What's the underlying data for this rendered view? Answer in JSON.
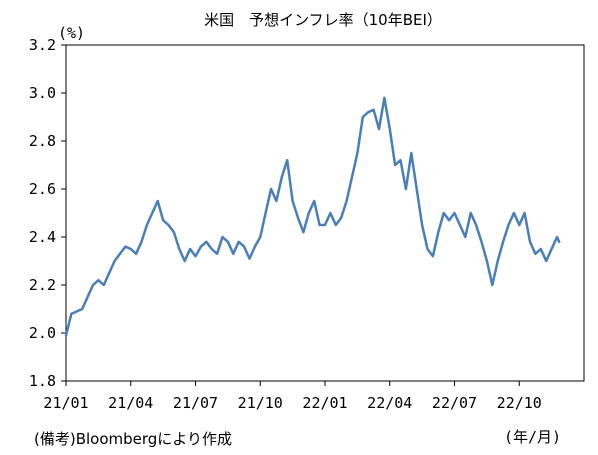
{
  "chart_data": {
    "type": "line",
    "title": "米国　予想インフレ率（10年BEI）",
    "yunit": "(%)",
    "xunit": "(年/月)",
    "source_note": "(備考)Bloombergにより作成",
    "ylim": [
      1.8,
      3.2
    ],
    "y_ticks": [
      "1.8",
      "2.0",
      "2.2",
      "2.4",
      "2.6",
      "2.8",
      "3.0",
      "3.2"
    ],
    "x_tick_labels": [
      "21/01",
      "21/04",
      "21/07",
      "21/10",
      "22/01",
      "22/04",
      "22/07",
      "22/10"
    ],
    "x_range_months": [
      "21/01",
      "22/12"
    ],
    "grid": false,
    "legend": "none",
    "line_color": "#4a7ebb",
    "series": [
      {
        "name": "",
        "points": [
          [
            0.0,
            1.99
          ],
          [
            0.25,
            2.08
          ],
          [
            0.5,
            2.09
          ],
          [
            0.75,
            2.1
          ],
          [
            1.0,
            2.15
          ],
          [
            1.25,
            2.2
          ],
          [
            1.5,
            2.22
          ],
          [
            1.75,
            2.2
          ],
          [
            2.0,
            2.25
          ],
          [
            2.25,
            2.3
          ],
          [
            2.5,
            2.33
          ],
          [
            2.75,
            2.36
          ],
          [
            3.0,
            2.35
          ],
          [
            3.25,
            2.33
          ],
          [
            3.5,
            2.38
          ],
          [
            3.75,
            2.45
          ],
          [
            4.0,
            2.5
          ],
          [
            4.25,
            2.55
          ],
          [
            4.5,
            2.47
          ],
          [
            4.75,
            2.45
          ],
          [
            5.0,
            2.42
          ],
          [
            5.25,
            2.35
          ],
          [
            5.5,
            2.3
          ],
          [
            5.75,
            2.35
          ],
          [
            6.0,
            2.32
          ],
          [
            6.25,
            2.36
          ],
          [
            6.5,
            2.38
          ],
          [
            6.75,
            2.35
          ],
          [
            7.0,
            2.33
          ],
          [
            7.25,
            2.4
          ],
          [
            7.5,
            2.38
          ],
          [
            7.75,
            2.33
          ],
          [
            8.0,
            2.38
          ],
          [
            8.25,
            2.36
          ],
          [
            8.5,
            2.31
          ],
          [
            8.75,
            2.36
          ],
          [
            9.0,
            2.4
          ],
          [
            9.25,
            2.5
          ],
          [
            9.5,
            2.6
          ],
          [
            9.75,
            2.55
          ],
          [
            10.0,
            2.65
          ],
          [
            10.25,
            2.72
          ],
          [
            10.5,
            2.55
          ],
          [
            10.75,
            2.48
          ],
          [
            11.0,
            2.42
          ],
          [
            11.25,
            2.5
          ],
          [
            11.5,
            2.55
          ],
          [
            11.75,
            2.45
          ],
          [
            12.0,
            2.45
          ],
          [
            12.25,
            2.5
          ],
          [
            12.5,
            2.45
          ],
          [
            12.75,
            2.48
          ],
          [
            13.0,
            2.55
          ],
          [
            13.25,
            2.65
          ],
          [
            13.5,
            2.75
          ],
          [
            13.75,
            2.9
          ],
          [
            14.0,
            2.92
          ],
          [
            14.25,
            2.93
          ],
          [
            14.5,
            2.85
          ],
          [
            14.75,
            2.98
          ],
          [
            15.0,
            2.85
          ],
          [
            15.25,
            2.7
          ],
          [
            15.5,
            2.72
          ],
          [
            15.75,
            2.6
          ],
          [
            16.0,
            2.75
          ],
          [
            16.25,
            2.6
          ],
          [
            16.5,
            2.45
          ],
          [
            16.75,
            2.35
          ],
          [
            17.0,
            2.32
          ],
          [
            17.25,
            2.42
          ],
          [
            17.5,
            2.5
          ],
          [
            17.75,
            2.47
          ],
          [
            18.0,
            2.5
          ],
          [
            18.25,
            2.45
          ],
          [
            18.5,
            2.4
          ],
          [
            18.75,
            2.5
          ],
          [
            19.0,
            2.45
          ],
          [
            19.25,
            2.38
          ],
          [
            19.5,
            2.3
          ],
          [
            19.75,
            2.2
          ],
          [
            20.0,
            2.3
          ],
          [
            20.25,
            2.38
          ],
          [
            20.5,
            2.45
          ],
          [
            20.75,
            2.5
          ],
          [
            21.0,
            2.45
          ],
          [
            21.25,
            2.5
          ],
          [
            21.5,
            2.38
          ],
          [
            21.75,
            2.33
          ],
          [
            22.0,
            2.35
          ],
          [
            22.25,
            2.3
          ],
          [
            22.5,
            2.35
          ],
          [
            22.75,
            2.4
          ],
          [
            22.85,
            2.38
          ]
        ]
      }
    ]
  }
}
